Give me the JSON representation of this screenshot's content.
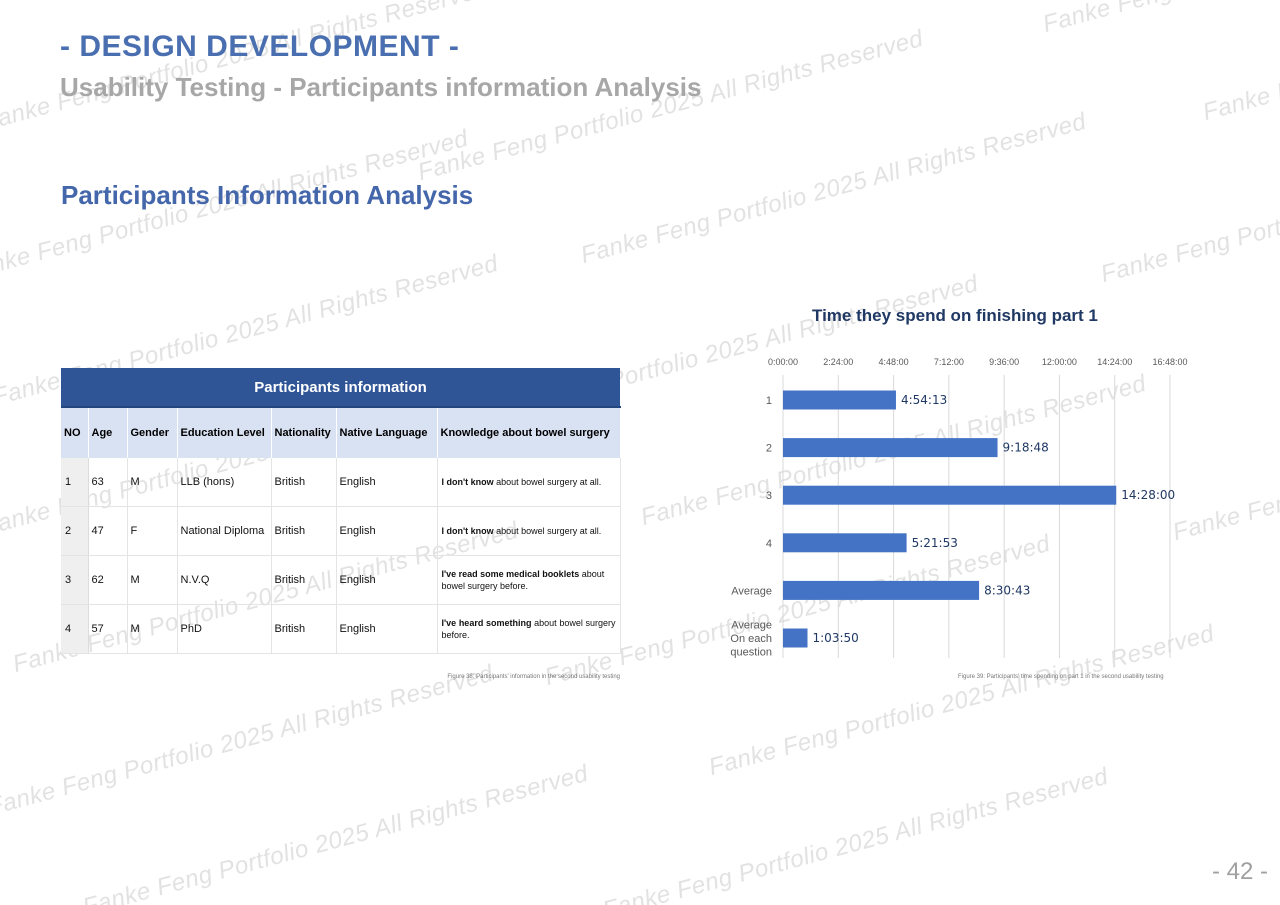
{
  "header": {
    "title": "- DESIGN DEVELOPMENT -",
    "subtitle": "Usability Testing - Participants information Analysis"
  },
  "section_title": "Participants Information Analysis",
  "watermark_text": "Fanke Feng Portfolio 2025 All Rights Reserved",
  "table": {
    "caption": "Participants information",
    "columns": [
      "NO",
      "Age",
      "Gender",
      "Education Level",
      "Nationality",
      "Native Language",
      "Knowledge about bowel surgery"
    ],
    "rows": [
      {
        "no": "1",
        "age": "63",
        "gender": "M",
        "education": "LLB (hons)",
        "nationality": "British",
        "language": "English",
        "knowledge_bold": "I don't know",
        "knowledge_rest": " about bowel surgery at all."
      },
      {
        "no": "2",
        "age": "47",
        "gender": "F",
        "education": "National Diploma",
        "nationality": "British",
        "language": "English",
        "knowledge_bold": "I don't know",
        "knowledge_rest": " about bowel surgery at all."
      },
      {
        "no": "3",
        "age": "62",
        "gender": "M",
        "education": "N.V.Q",
        "nationality": "British",
        "language": "English",
        "knowledge_bold": "I've read some medical booklets",
        "knowledge_rest": " about bowel surgery before."
      },
      {
        "no": "4",
        "age": "57",
        "gender": "M",
        "education": "PhD",
        "nationality": "British",
        "language": "English",
        "knowledge_bold": "I've heard something",
        "knowledge_rest": " about bowel surgery before."
      }
    ],
    "figure_caption": "Figure 38: Participants' information in the second usability testing"
  },
  "chart_data": {
    "type": "bar",
    "orientation": "horizontal",
    "title": "Time they spend on finishing part 1",
    "categories": [
      "1",
      "2",
      "3",
      "4",
      "Average",
      "Average On each question"
    ],
    "category_lines": [
      [
        "1"
      ],
      [
        "2"
      ],
      [
        "3"
      ],
      [
        "4"
      ],
      [
        "Average"
      ],
      [
        "Average",
        "On each",
        "question"
      ]
    ],
    "values_seconds": [
      17653,
      33528,
      52080,
      19313,
      30643,
      3830
    ],
    "value_labels": [
      "4:54:13",
      "9:18:48",
      "14:28:00",
      "5:21:53",
      "8:30:43",
      "1:03:50"
    ],
    "x_ticks": [
      "0:00:00",
      "2:24:00",
      "4:48:00",
      "7:12:00",
      "9:36:00",
      "12:00:00",
      "14:24:00",
      "16:48:00"
    ],
    "x_tick_seconds": [
      0,
      8640,
      17280,
      25920,
      34560,
      43200,
      51840,
      60480
    ],
    "xlim_seconds": [
      0,
      60480
    ],
    "grid": true,
    "bar_color": "#4472c4",
    "figure_caption": "Figure 39: Participants' time spending on part 1 in the second usability testing"
  },
  "page_number": "- 42 -",
  "colors": {
    "title": "#4a6fb0",
    "subtitle": "#a7a7a7",
    "section": "#4466aa",
    "table_header": "#2f5597",
    "column_header": "#d9e2f3"
  }
}
